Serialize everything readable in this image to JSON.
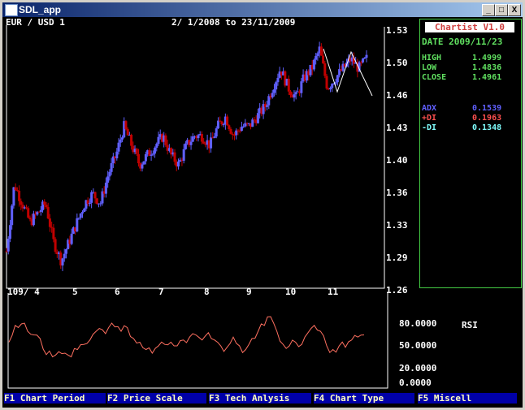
{
  "window": {
    "title": "SDL_app",
    "buttons": [
      "_",
      "□",
      "X"
    ]
  },
  "chart": {
    "symbol": "EUR / USD 1",
    "range": "2/ 1/2008 to 23/11/2009",
    "price_ticks": [
      "1.53",
      "1.50",
      "1.46",
      "1.43",
      "1.40",
      "1.36",
      "1.33",
      "1.29",
      "1.26"
    ],
    "date_ticks": [
      "109/ 4",
      "5",
      "6",
      "7",
      "8",
      "9",
      "10",
      "11"
    ]
  },
  "info": {
    "app": "Chartist V1.0",
    "date": "DATE 2009/11/23",
    "rows": [
      {
        "label": "HIGH",
        "value": "1.4999"
      },
      {
        "label": "LOW",
        "value": "1.4836"
      },
      {
        "label": "CLOSE",
        "value": "1.4961"
      }
    ],
    "indicators": [
      {
        "label": "ADX",
        "value": "0.1539",
        "color": "#6060ff"
      },
      {
        "label": "+DI",
        "value": "0.1963",
        "color": "#ff5050"
      },
      {
        "label": "-DI",
        "value": "0.1348",
        "color": "#80ffff"
      }
    ]
  },
  "rsi": {
    "label": "RSI",
    "ticks": [
      "80.0000",
      "50.0000",
      "20.0000",
      "0.0000"
    ]
  },
  "menu": [
    "F1 Chart Period",
    "F2 Price Scale",
    "F3 Tech Anlysis",
    "F4 Chart Type",
    "F5 Miscell"
  ],
  "colors": {
    "up": "#6060ff",
    "down": "#c00000",
    "rsi": "#ff7060",
    "frame": "#40c040"
  },
  "chart_data": {
    "type": "candlestick",
    "ylim": [
      1.26,
      1.53
    ],
    "closes": [
      1.3,
      1.37,
      1.35,
      1.33,
      1.34,
      1.35,
      1.31,
      1.29,
      1.31,
      1.33,
      1.35,
      1.36,
      1.35,
      1.38,
      1.4,
      1.43,
      1.41,
      1.39,
      1.4,
      1.41,
      1.42,
      1.4,
      1.39,
      1.41,
      1.42,
      1.42,
      1.41,
      1.43,
      1.44,
      1.42,
      1.43,
      1.43,
      1.44,
      1.45,
      1.47,
      1.49,
      1.47,
      1.46,
      1.48,
      1.49,
      1.51,
      1.47,
      1.48,
      1.49,
      1.5,
      1.49,
      1.5
    ],
    "rsi_values": [
      55,
      78,
      80,
      70,
      65,
      60,
      38,
      35,
      42,
      40,
      35,
      45,
      52,
      58,
      70,
      72,
      75,
      76,
      70,
      75,
      60,
      55,
      45,
      40,
      50,
      52,
      55,
      50,
      58,
      62,
      65,
      58,
      68,
      58,
      50,
      48,
      62,
      50,
      45,
      60,
      70,
      78,
      90,
      70,
      52,
      50,
      55,
      52,
      68,
      78,
      70,
      50,
      45,
      50,
      48,
      58,
      62,
      65
    ]
  }
}
